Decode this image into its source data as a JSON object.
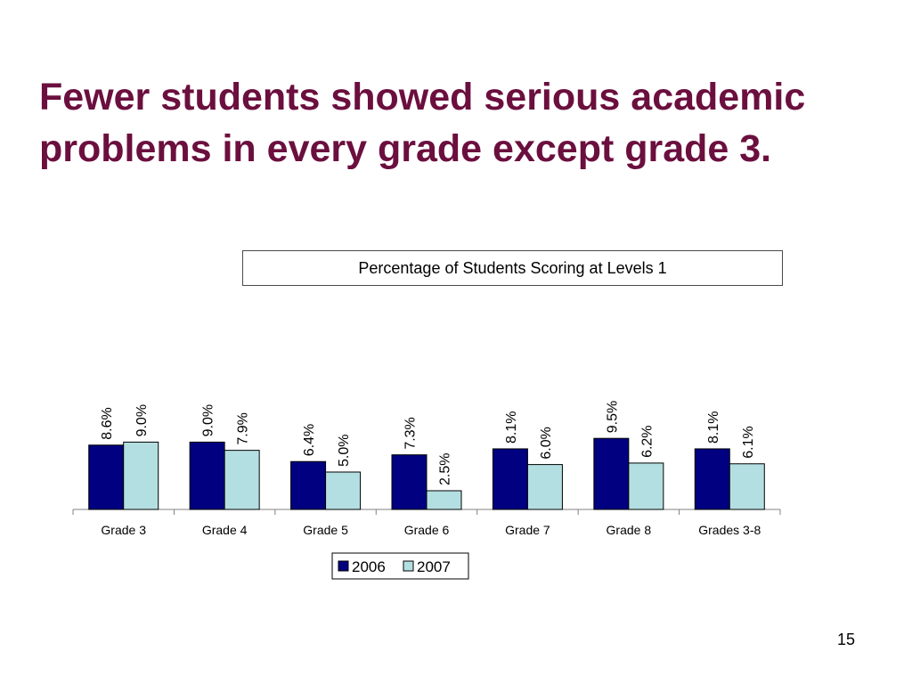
{
  "slide": {
    "title": "Fewer students showed serious academic\nproblems in every grade except grade 3.",
    "page_number": "15"
  },
  "colors": {
    "title": "#6b0f3e",
    "series_2006": "#000080",
    "series_2007": "#b4dfe2"
  },
  "chart_data": {
    "type": "bar",
    "title": "Percentage of Students Scoring at Levels 1",
    "categories": [
      "Grade 3",
      "Grade 4",
      "Grade 5",
      "Grade 6",
      "Grade 7",
      "Grade 8",
      "Grades 3-8"
    ],
    "series": [
      {
        "name": "2006",
        "values": [
          8.6,
          9.0,
          6.4,
          7.3,
          8.1,
          9.5,
          8.1
        ],
        "labels": [
          "8.6%",
          "9.0%",
          "6.4%",
          "7.3%",
          "8.1%",
          "9.5%",
          "8.1%"
        ]
      },
      {
        "name": "2007",
        "values": [
          9.0,
          7.9,
          5.0,
          2.5,
          6.0,
          6.2,
          6.1
        ],
        "labels": [
          "9.0%",
          "7.9%",
          "5.0%",
          "2.5%",
          "6.0%",
          "6.2%",
          "6.1%"
        ]
      }
    ],
    "xlabel": "",
    "ylabel": "",
    "legend_position": "bottom",
    "grid": false,
    "y_axis_visible": false,
    "data_labels_rotated": true
  }
}
